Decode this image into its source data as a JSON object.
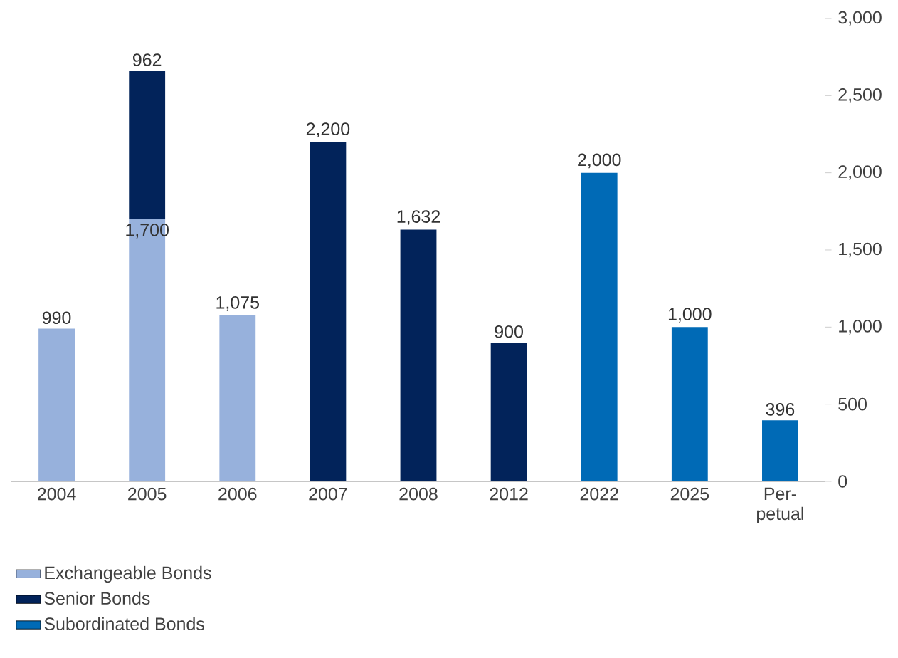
{
  "chart_data": {
    "type": "bar",
    "stacked": true,
    "categories": [
      "2004",
      "2005",
      "2006",
      "2007",
      "2008",
      "2012",
      "2022",
      "2025",
      "Per-petual"
    ],
    "series": [
      {
        "name": "Exchangeable Bonds",
        "color": "#97b1dc",
        "values": [
          990,
          1700,
          1075,
          null,
          null,
          null,
          null,
          null,
          null
        ],
        "value_labels": [
          "990",
          "1,700",
          "1,075",
          null,
          null,
          null,
          null,
          null,
          null
        ]
      },
      {
        "name": "Senior Bonds",
        "color": "#02235a",
        "values": [
          null,
          962,
          null,
          2200,
          1632,
          900,
          null,
          null,
          null
        ],
        "value_labels": [
          null,
          "962",
          null,
          "2,200",
          "1,632",
          "900",
          null,
          null,
          null
        ]
      },
      {
        "name": "Subordinated Bonds",
        "color": "#006ab6",
        "values": [
          null,
          null,
          null,
          null,
          null,
          null,
          2000,
          1000,
          396
        ],
        "value_labels": [
          null,
          null,
          null,
          null,
          null,
          null,
          "2,000",
          "1,000",
          "396"
        ]
      }
    ],
    "ylim": [
      0,
      3000
    ],
    "yticks": [
      0,
      {
        "value": 500,
        "label": "500"
      },
      {
        "value": 1000,
        "label": "1,000"
      },
      {
        "value": 1500,
        "label": "1,500"
      },
      {
        "value": 2000,
        "label": "2,000"
      },
      {
        "value": 2500,
        "label": "2,500"
      },
      {
        "value": 3000,
        "label": "3,000"
      }
    ],
    "legend": "bottom left"
  }
}
